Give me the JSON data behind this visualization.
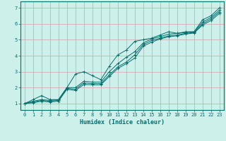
{
  "title": "",
  "xlabel": "Humidex (Indice chaleur)",
  "background_color": "#cef0ea",
  "grid_color": "#d4a0a0",
  "line_color": "#007070",
  "spine_color": "#007070",
  "xlim": [
    -0.5,
    23.5
  ],
  "ylim": [
    0.6,
    7.4
  ],
  "xticks": [
    0,
    1,
    2,
    3,
    4,
    5,
    6,
    7,
    8,
    9,
    10,
    11,
    12,
    13,
    14,
    15,
    16,
    17,
    18,
    19,
    20,
    21,
    22,
    23
  ],
  "yticks": [
    1,
    2,
    3,
    4,
    5,
    6,
    7
  ],
  "series": [
    {
      "x": [
        0,
        1,
        2,
        3,
        4,
        5,
        6,
        7,
        8,
        9,
        10,
        11,
        12,
        13,
        14,
        15,
        16,
        17,
        18,
        19,
        20,
        21,
        22,
        23
      ],
      "y": [
        1.0,
        1.25,
        1.5,
        1.25,
        1.25,
        2.0,
        2.85,
        3.0,
        2.75,
        2.5,
        3.35,
        4.05,
        4.35,
        4.9,
        5.0,
        5.1,
        5.3,
        5.5,
        5.4,
        5.5,
        5.5,
        6.25,
        6.5,
        7.0
      ]
    },
    {
      "x": [
        0,
        1,
        2,
        3,
        4,
        5,
        6,
        7,
        8,
        9,
        10,
        11,
        12,
        13,
        14,
        15,
        16,
        17,
        18,
        19,
        20,
        21,
        22,
        23
      ],
      "y": [
        1.0,
        1.15,
        1.25,
        1.2,
        1.25,
        2.0,
        2.0,
        2.4,
        2.35,
        2.35,
        3.0,
        3.5,
        3.9,
        4.25,
        4.8,
        5.05,
        5.2,
        5.35,
        5.4,
        5.45,
        5.5,
        6.1,
        6.4,
        6.85
      ]
    },
    {
      "x": [
        0,
        1,
        2,
        3,
        4,
        5,
        6,
        7,
        8,
        9,
        10,
        11,
        12,
        13,
        14,
        15,
        16,
        17,
        18,
        19,
        20,
        21,
        22,
        23
      ],
      "y": [
        1.0,
        1.1,
        1.2,
        1.15,
        1.2,
        1.95,
        1.9,
        2.3,
        2.25,
        2.25,
        2.8,
        3.3,
        3.6,
        4.05,
        4.7,
        4.95,
        5.1,
        5.25,
        5.3,
        5.4,
        5.45,
        6.0,
        6.3,
        6.75
      ]
    },
    {
      "x": [
        0,
        1,
        2,
        3,
        4,
        5,
        6,
        7,
        8,
        9,
        10,
        11,
        12,
        13,
        14,
        15,
        16,
        17,
        18,
        19,
        20,
        21,
        22,
        23
      ],
      "y": [
        1.0,
        1.05,
        1.15,
        1.1,
        1.15,
        1.9,
        1.82,
        2.2,
        2.18,
        2.18,
        2.7,
        3.2,
        3.5,
        3.85,
        4.6,
        4.85,
        5.05,
        5.18,
        5.25,
        5.35,
        5.42,
        5.92,
        6.2,
        6.65
      ]
    }
  ]
}
